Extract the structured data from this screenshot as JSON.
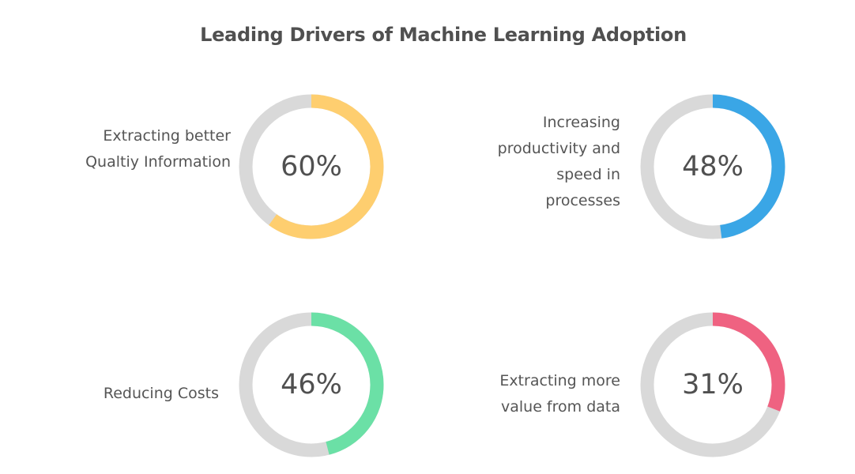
{
  "chart_data": {
    "type": "donut",
    "title": "Leading Drivers of Machine Learning Adoption",
    "track_color": "#d9d9d9",
    "items": [
      {
        "label_lines": [
          "Extracting better",
          "Qualtiy Information"
        ],
        "value": 60,
        "value_label": "60%",
        "color": "#fece6f"
      },
      {
        "label_lines": [
          "Increasing",
          "productivity and",
          "speed in",
          "processes"
        ],
        "value": 48,
        "value_label": "48%",
        "color": "#3aa6e6"
      },
      {
        "label_lines": [
          "Reducing Costs"
        ],
        "value": 46,
        "value_label": "46%",
        "color": "#6be0a6"
      },
      {
        "label_lines": [
          "Extracting more",
          "value from data"
        ],
        "value": 31,
        "value_label": "31%",
        "color": "#ef6281"
      }
    ]
  }
}
